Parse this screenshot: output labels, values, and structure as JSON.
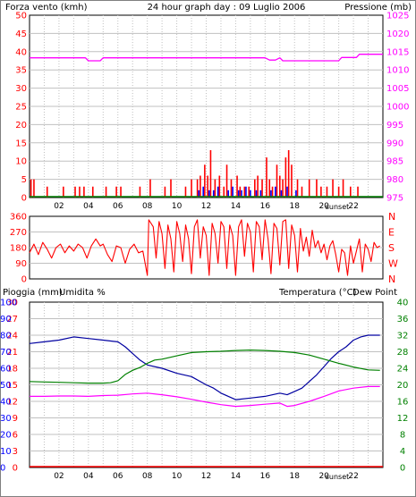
{
  "header": {
    "left_title": "Forza vento (kmh)",
    "center_title": "24 hour graph day : 09 Luglio 2006",
    "right_title": "Pressione (mb)"
  },
  "bottom_header": {
    "rain_label": "Pioggia (mm)",
    "humidity_label": "Umidita %",
    "temp_label": "Temperatura (°C)",
    "dewpoint_label": "Dew Point"
  },
  "sunset_label": "sunset",
  "colors": {
    "wind": "#ff0000",
    "gust": "#0000ff",
    "pressure": "#ff00ff",
    "direction": "#ff0000",
    "humidity": "#0000a0",
    "temperature": "#008000",
    "dewpoint": "#ff00ff",
    "rain": "#ff0000",
    "ground": "#008000",
    "grid": "#c0c0c0",
    "frame": "#000000",
    "label_red": "#ff0000",
    "label_magenta": "#ff00ff",
    "label_blue": "#0000ff",
    "label_green": "#008000"
  },
  "chart_data": [
    {
      "type": "bar",
      "name": "wind",
      "x_ticks": [
        "02",
        "04",
        "06",
        "08",
        "10",
        "12",
        "14",
        "16",
        "18",
        "20",
        "22"
      ],
      "x_range": [
        0,
        24
      ],
      "y_left_ticks": [
        "0",
        "5",
        "10",
        "15",
        "20",
        "25",
        "30",
        "35",
        "40",
        "45",
        "50"
      ],
      "y_left_range": [
        0,
        50
      ],
      "y_right_ticks": [
        "975",
        "980",
        "985",
        "990",
        "995",
        "1000",
        "1005",
        "1010",
        "1015",
        "1020",
        "1025"
      ],
      "y_right_range": [
        975,
        1025
      ],
      "wind_bars": [
        [
          0.1,
          5
        ],
        [
          0.3,
          5
        ],
        [
          1.2,
          3
        ],
        [
          2.3,
          3
        ],
        [
          3.1,
          3
        ],
        [
          3.4,
          3
        ],
        [
          3.7,
          3
        ],
        [
          4.3,
          3
        ],
        [
          5.2,
          3
        ],
        [
          5.9,
          3
        ],
        [
          6.2,
          3
        ],
        [
          7.5,
          3
        ],
        [
          8.2,
          5
        ],
        [
          9.2,
          3
        ],
        [
          9.6,
          5
        ],
        [
          10.6,
          3
        ],
        [
          11.0,
          5
        ],
        [
          11.4,
          5
        ],
        [
          11.6,
          6
        ],
        [
          11.9,
          9
        ],
        [
          12.1,
          6
        ],
        [
          12.3,
          13
        ],
        [
          12.6,
          5
        ],
        [
          12.9,
          6
        ],
        [
          13.2,
          3
        ],
        [
          13.4,
          9
        ],
        [
          13.7,
          5
        ],
        [
          14.1,
          6
        ],
        [
          14.3,
          3
        ],
        [
          14.6,
          3
        ],
        [
          14.9,
          3
        ],
        [
          15.3,
          5
        ],
        [
          15.5,
          6
        ],
        [
          15.8,
          5
        ],
        [
          16.1,
          11
        ],
        [
          16.3,
          5
        ],
        [
          16.5,
          3
        ],
        [
          16.8,
          9
        ],
        [
          17.0,
          6
        ],
        [
          17.2,
          5
        ],
        [
          17.4,
          11
        ],
        [
          17.6,
          13
        ],
        [
          17.8,
          9
        ],
        [
          18.2,
          5
        ],
        [
          18.5,
          3
        ],
        [
          19.0,
          5
        ],
        [
          19.5,
          5
        ],
        [
          19.8,
          3
        ],
        [
          20.2,
          3
        ],
        [
          20.6,
          5
        ],
        [
          21.0,
          3
        ],
        [
          21.3,
          5
        ],
        [
          21.8,
          3
        ],
        [
          22.3,
          3
        ]
      ],
      "gust_bars": [
        [
          11.5,
          2
        ],
        [
          11.8,
          3
        ],
        [
          12.2,
          2
        ],
        [
          12.5,
          2
        ],
        [
          12.8,
          3
        ],
        [
          13.5,
          2
        ],
        [
          13.8,
          3
        ],
        [
          14.2,
          2
        ],
        [
          14.4,
          2
        ],
        [
          14.7,
          3
        ],
        [
          15.0,
          2
        ],
        [
          15.4,
          2
        ],
        [
          15.7,
          2
        ],
        [
          16.4,
          2
        ],
        [
          16.7,
          3
        ],
        [
          17.1,
          2
        ],
        [
          17.5,
          3
        ],
        [
          18.1,
          2
        ]
      ],
      "pressure": [
        [
          0,
          1013.3
        ],
        [
          3.8,
          1013.3
        ],
        [
          4.0,
          1012.5
        ],
        [
          4.8,
          1012.5
        ],
        [
          5.0,
          1013.3
        ],
        [
          16.0,
          1013.3
        ],
        [
          16.3,
          1012.7
        ],
        [
          16.7,
          1012.7
        ],
        [
          17.0,
          1013.3
        ],
        [
          17.2,
          1012.5
        ],
        [
          21.0,
          1012.5
        ],
        [
          21.2,
          1013.4
        ],
        [
          22.2,
          1013.4
        ],
        [
          22.4,
          1014.3
        ],
        [
          24,
          1014.3
        ]
      ]
    },
    {
      "type": "line",
      "name": "wind direction",
      "y_ticks": [
        "0",
        "90",
        "180",
        "270",
        "360"
      ],
      "y_range": [
        0,
        360
      ],
      "y_right_labels": [
        "N",
        "W",
        "S",
        "E",
        "N"
      ],
      "direction": [
        [
          0,
          150
        ],
        [
          0.3,
          200
        ],
        [
          0.6,
          140
        ],
        [
          0.9,
          210
        ],
        [
          1.2,
          170
        ],
        [
          1.5,
          120
        ],
        [
          1.8,
          180
        ],
        [
          2.1,
          200
        ],
        [
          2.4,
          150
        ],
        [
          2.7,
          190
        ],
        [
          3.0,
          160
        ],
        [
          3.3,
          200
        ],
        [
          3.6,
          180
        ],
        [
          3.9,
          120
        ],
        [
          4.2,
          190
        ],
        [
          4.5,
          230
        ],
        [
          4.8,
          190
        ],
        [
          5.0,
          200
        ],
        [
          5.3,
          140
        ],
        [
          5.6,
          100
        ],
        [
          5.9,
          190
        ],
        [
          6.2,
          180
        ],
        [
          6.5,
          90
        ],
        [
          6.8,
          170
        ],
        [
          7.1,
          200
        ],
        [
          7.4,
          150
        ],
        [
          7.7,
          160
        ],
        [
          8.0,
          20
        ],
        [
          8.1,
          340
        ],
        [
          8.4,
          300
        ],
        [
          8.6,
          120
        ],
        [
          8.8,
          330
        ],
        [
          9.0,
          260
        ],
        [
          9.2,
          60
        ],
        [
          9.4,
          310
        ],
        [
          9.6,
          230
        ],
        [
          9.8,
          40
        ],
        [
          10.0,
          330
        ],
        [
          10.2,
          260
        ],
        [
          10.4,
          100
        ],
        [
          10.6,
          310
        ],
        [
          10.8,
          230
        ],
        [
          11.0,
          30
        ],
        [
          11.2,
          300
        ],
        [
          11.4,
          340
        ],
        [
          11.6,
          120
        ],
        [
          11.8,
          300
        ],
        [
          12.0,
          250
        ],
        [
          12.2,
          20
        ],
        [
          12.4,
          320
        ],
        [
          12.6,
          260
        ],
        [
          12.8,
          90
        ],
        [
          13.0,
          330
        ],
        [
          13.2,
          300
        ],
        [
          13.4,
          60
        ],
        [
          13.6,
          310
        ],
        [
          13.8,
          250
        ],
        [
          14.0,
          20
        ],
        [
          14.2,
          300
        ],
        [
          14.4,
          340
        ],
        [
          14.6,
          130
        ],
        [
          14.8,
          320
        ],
        [
          15.0,
          270
        ],
        [
          15.2,
          40
        ],
        [
          15.4,
          330
        ],
        [
          15.6,
          300
        ],
        [
          15.8,
          110
        ],
        [
          16.0,
          340
        ],
        [
          16.2,
          230
        ],
        [
          16.4,
          30
        ],
        [
          16.6,
          320
        ],
        [
          16.8,
          290
        ],
        [
          17.0,
          80
        ],
        [
          17.2,
          330
        ],
        [
          17.4,
          340
        ],
        [
          17.6,
          60
        ],
        [
          17.8,
          310
        ],
        [
          18.0,
          250
        ],
        [
          18.2,
          40
        ],
        [
          18.4,
          290
        ],
        [
          18.6,
          160
        ],
        [
          18.8,
          240
        ],
        [
          19.0,
          130
        ],
        [
          19.2,
          280
        ],
        [
          19.4,
          180
        ],
        [
          19.6,
          220
        ],
        [
          19.8,
          150
        ],
        [
          20.0,
          200
        ],
        [
          20.2,
          110
        ],
        [
          20.4,
          190
        ],
        [
          20.6,
          220
        ],
        [
          20.8,
          140
        ],
        [
          21.0,
          40
        ],
        [
          21.2,
          170
        ],
        [
          21.4,
          150
        ],
        [
          21.6,
          20
        ],
        [
          21.8,
          190
        ],
        [
          22.0,
          90
        ],
        [
          22.2,
          160
        ],
        [
          22.4,
          230
        ],
        [
          22.6,
          40
        ],
        [
          22.8,
          200
        ],
        [
          23.0,
          170
        ],
        [
          23.2,
          100
        ],
        [
          23.4,
          210
        ],
        [
          23.6,
          180
        ],
        [
          23.8,
          190
        ]
      ]
    },
    {
      "type": "line",
      "name": "humidity temperature dewpoint rain",
      "y_rain_ticks": [
        "0",
        "3",
        "6",
        "9",
        "12",
        "15",
        "18",
        "21",
        "24",
        "27",
        "30"
      ],
      "y_rain_range": [
        0,
        30
      ],
      "y_humidity_ticks": [
        "0",
        "10",
        "20",
        "30",
        "40",
        "50",
        "60",
        "70",
        "80",
        "90",
        "100"
      ],
      "y_humidity_range": [
        0,
        100
      ],
      "y_temp_ticks": [
        "0",
        "4",
        "8",
        "12",
        "16",
        "20",
        "24",
        "28",
        "32",
        "36",
        "40"
      ],
      "y_temp_range": [
        0,
        40
      ],
      "humidity": [
        [
          0,
          75
        ],
        [
          1,
          76
        ],
        [
          2,
          77
        ],
        [
          3,
          79
        ],
        [
          4,
          78
        ],
        [
          5,
          77
        ],
        [
          6,
          76
        ],
        [
          6.5,
          73
        ],
        [
          7,
          69
        ],
        [
          7.5,
          65
        ],
        [
          8,
          62
        ],
        [
          9,
          60
        ],
        [
          10,
          57
        ],
        [
          11,
          55
        ],
        [
          12,
          50
        ],
        [
          12.5,
          48
        ],
        [
          13,
          45
        ],
        [
          13.5,
          43
        ],
        [
          14,
          41
        ],
        [
          15,
          42
        ],
        [
          16,
          43
        ],
        [
          17,
          45
        ],
        [
          17.5,
          44
        ],
        [
          18,
          46
        ],
        [
          18.5,
          48
        ],
        [
          19,
          52
        ],
        [
          19.5,
          56
        ],
        [
          20,
          61
        ],
        [
          20.5,
          66
        ],
        [
          21,
          70
        ],
        [
          21.5,
          73
        ],
        [
          22,
          77
        ],
        [
          22.5,
          79
        ],
        [
          23,
          80
        ],
        [
          23.8,
          80
        ]
      ],
      "temperature": [
        [
          0,
          20.8
        ],
        [
          1,
          20.7
        ],
        [
          2,
          20.6
        ],
        [
          3,
          20.5
        ],
        [
          4,
          20.4
        ],
        [
          5,
          20.4
        ],
        [
          5.5,
          20.5
        ],
        [
          6,
          21.0
        ],
        [
          6.5,
          22.5
        ],
        [
          7,
          23.5
        ],
        [
          7.5,
          24.2
        ],
        [
          8,
          25.2
        ],
        [
          8.5,
          26.0
        ],
        [
          9,
          26.2
        ],
        [
          10,
          27.0
        ],
        [
          11,
          27.8
        ],
        [
          12,
          28.0
        ],
        [
          13,
          28.1
        ],
        [
          14,
          28.3
        ],
        [
          15,
          28.4
        ],
        [
          16,
          28.3
        ],
        [
          17,
          28.1
        ],
        [
          18,
          27.8
        ],
        [
          19,
          27.2
        ],
        [
          20,
          26.2
        ],
        [
          21,
          25.2
        ],
        [
          22,
          24.3
        ],
        [
          23,
          23.6
        ],
        [
          23.8,
          23.5
        ]
      ],
      "dewpoint": [
        [
          0,
          17.2
        ],
        [
          1,
          17.2
        ],
        [
          2,
          17.3
        ],
        [
          3,
          17.3
        ],
        [
          4,
          17.2
        ],
        [
          5,
          17.4
        ],
        [
          6,
          17.5
        ],
        [
          7,
          17.8
        ],
        [
          8,
          18.0
        ],
        [
          9,
          17.6
        ],
        [
          10,
          17.1
        ],
        [
          11,
          16.5
        ],
        [
          12,
          15.8
        ],
        [
          13,
          15.2
        ],
        [
          14,
          14.8
        ],
        [
          15,
          15.0
        ],
        [
          16,
          15.3
        ],
        [
          17,
          15.6
        ],
        [
          17.5,
          14.8
        ],
        [
          18,
          15.0
        ],
        [
          19,
          16.0
        ],
        [
          20,
          17.2
        ],
        [
          21,
          18.5
        ],
        [
          22,
          19.2
        ],
        [
          23,
          19.6
        ],
        [
          23.8,
          19.6
        ]
      ],
      "rain": [
        [
          0,
          0
        ],
        [
          24,
          0
        ]
      ]
    }
  ]
}
